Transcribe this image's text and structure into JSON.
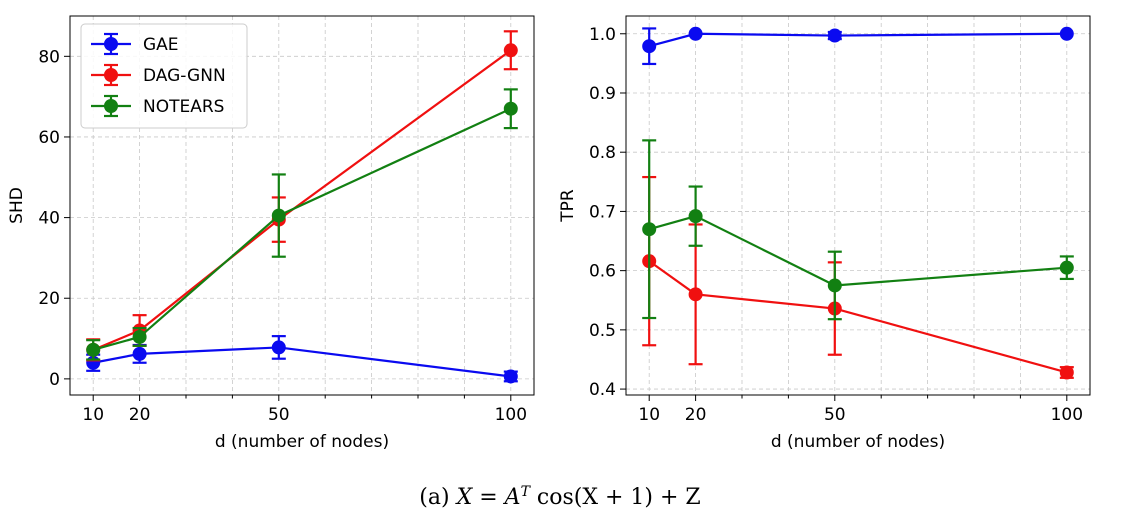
{
  "caption": {
    "label": "(a)",
    "equation": "X = A",
    "equation_sup": "T",
    "equation_rest": "cos(X + 1) + Z"
  },
  "colors": {
    "GAE": "#0a0af0",
    "DAG-GNN": "#f01010",
    "NOTEARS": "#128012"
  },
  "chart_data": [
    {
      "type": "line",
      "title": "",
      "xlabel": "d (number of nodes)",
      "ylabel": "SHD",
      "x": [
        10,
        20,
        50,
        100
      ],
      "xlim": [
        5,
        105
      ],
      "ylim": [
        -4,
        90
      ],
      "xticks": [
        10,
        20,
        50,
        100
      ],
      "yticks": [
        0,
        20,
        40,
        60,
        80
      ],
      "grid": true,
      "legend": "top-left",
      "series": [
        {
          "name": "GAE",
          "values": [
            4.0,
            6.2,
            7.8,
            0.6
          ],
          "err": [
            2.0,
            2.2,
            2.8,
            1.2
          ]
        },
        {
          "name": "DAG-GNN",
          "values": [
            7.2,
            12.0,
            39.5,
            81.5
          ],
          "err": [
            2.6,
            3.8,
            5.5,
            4.7
          ]
        },
        {
          "name": "NOTEARS",
          "values": [
            7.2,
            10.4,
            40.5,
            67.0
          ],
          "err": [
            2.4,
            2.2,
            10.2,
            4.8
          ]
        }
      ]
    },
    {
      "type": "line",
      "title": "",
      "xlabel": "d (number of nodes)",
      "ylabel": "TPR",
      "x": [
        10,
        20,
        50,
        100
      ],
      "xlim": [
        5,
        105
      ],
      "ylim": [
        0.39,
        1.03
      ],
      "xticks": [
        10,
        20,
        50,
        100
      ],
      "yticks": [
        0.4,
        0.5,
        0.6,
        0.7,
        0.8,
        0.9,
        1.0
      ],
      "grid": true,
      "legend": "none",
      "series": [
        {
          "name": "GAE",
          "values": [
            0.979,
            1.0,
            0.997,
            1.0
          ],
          "err": [
            0.03,
            0.0,
            0.006,
            0.0
          ]
        },
        {
          "name": "DAG-GNN",
          "values": [
            0.616,
            0.56,
            0.536,
            0.428
          ],
          "err": [
            0.142,
            0.118,
            0.078,
            0.009
          ]
        },
        {
          "name": "NOTEARS",
          "values": [
            0.67,
            0.692,
            0.575,
            0.605
          ],
          "err": [
            0.15,
            0.05,
            0.057,
            0.019
          ]
        }
      ]
    }
  ]
}
